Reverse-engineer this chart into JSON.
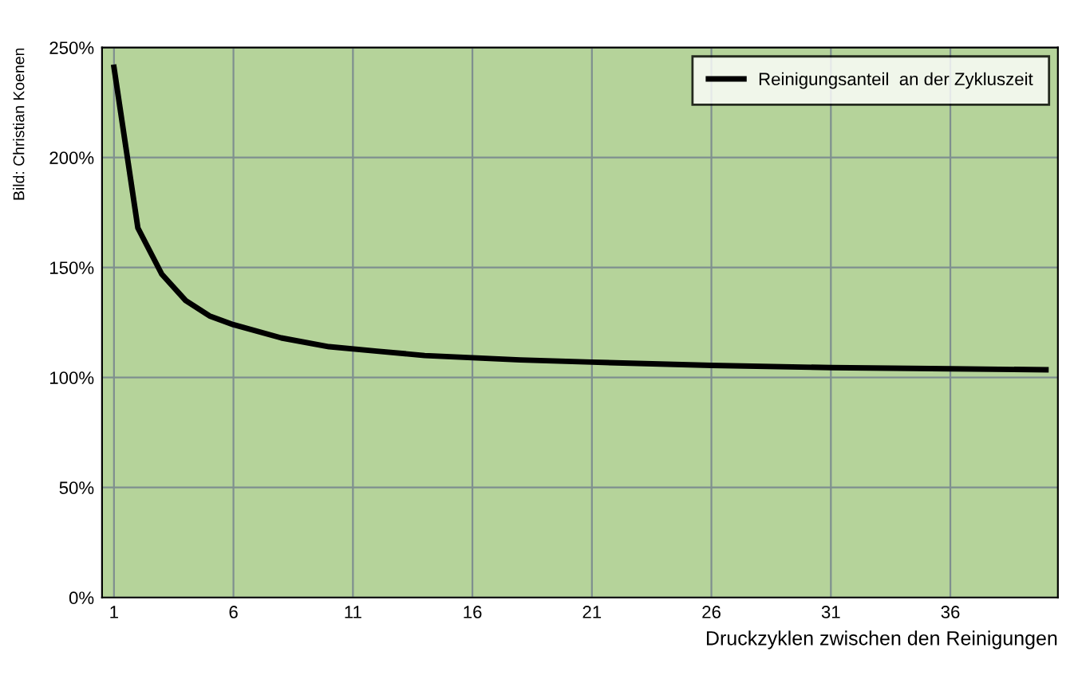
{
  "chart_data": {
    "type": "line",
    "x": [
      1,
      2,
      3,
      4,
      5,
      6,
      8,
      10,
      12,
      14,
      16,
      18,
      21,
      26,
      31,
      36,
      40
    ],
    "series": [
      {
        "name": "Reinigungsanteil  an der Zykluszeit",
        "color": "#000000",
        "values": [
          241,
          168,
          147,
          135,
          128,
          124,
          118,
          114,
          112,
          110,
          109,
          108,
          107,
          105.5,
          104.5,
          104,
          103.5
        ]
      }
    ],
    "xlim": [
      0.5,
      40.5
    ],
    "xticks": [
      1,
      6,
      11,
      16,
      21,
      26,
      31,
      36
    ],
    "ylim": [
      0,
      250
    ],
    "yticks": [
      {
        "value": 0,
        "label": "0%"
      },
      {
        "value": 50,
        "label": "50%"
      },
      {
        "value": 100,
        "label": "100%"
      },
      {
        "value": 150,
        "label": "150%"
      },
      {
        "value": 200,
        "label": "200%"
      },
      {
        "value": 250,
        "label": "250%"
      }
    ],
    "xlabel": "Druckzyklen zwischen den Reinigungen",
    "annotations": [
      "Bild: Christian Koenen"
    ],
    "grid": true,
    "legend": "top right",
    "marker": "none",
    "line_style": "solid"
  }
}
